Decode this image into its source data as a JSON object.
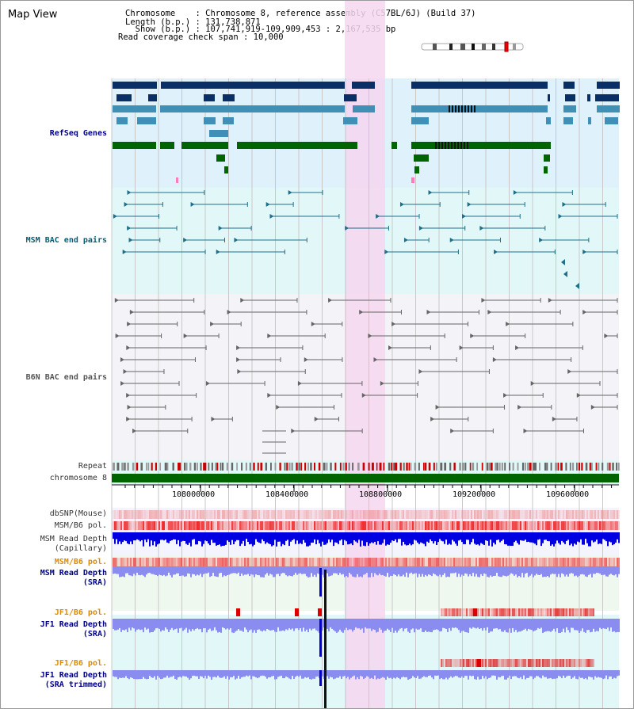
{
  "header": {
    "title": "Map View",
    "chromosome_line": "Chromosome    : Chromosome 8, reference assembly (C57BL/6J) (Build 37)",
    "length_line": "Length (b.p.) : 131,738,871",
    "show_line": "  Show (b.p.) : 107,741,919-109,909,453 : 2,167,535 bp",
    "coverage_line": "Read coverage check span : 10,000"
  },
  "tracks": {
    "refseq": "RefSeq Genes",
    "msm_bac": "MSM BAC end pairs",
    "b6n_bac": "B6N BAC end pairs",
    "repeat": "Repeat",
    "chromosome": "chromosome 8",
    "dbsnp": "dbSNP(Mouse)",
    "msm_b6_pol": "MSM/B6 pol.",
    "msm_depth_cap_1": "MSM Read Depth",
    "msm_depth_cap_2": "(Capillary)",
    "msm_b6_pol_2": "MSM/B6 pol.",
    "msm_depth_sra_1": "MSM Read Depth",
    "msm_depth_sra_2": "(SRA)",
    "jf1_b6_pol": "JF1/B6 pol.",
    "jf1_depth_sra_1": "JF1 Read Depth",
    "jf1_depth_sra_2": "(SRA)",
    "jf1_b6_pol_2": "JF1/B6 pol.",
    "jf1_depth_trim_1": "JF1 Read Depth",
    "jf1_depth_trim_2": "(SRA trimmed)"
  },
  "axis": {
    "ticks": [
      "108000000",
      "108400000",
      "108800000",
      "109200000",
      "109600000"
    ]
  },
  "colors": {
    "refseq_dark": "#0a2f66",
    "refseq_mid": "#3f8fb6",
    "refseq_green": "#006400",
    "refseq_bg": "#dff1fa",
    "msm_bg": "#e2f8f8",
    "b6n_bg": "#f3f3f8",
    "highlight": "#f6d7f0",
    "chromosome_green": "#006400",
    "depth_blue": "#0000e0",
    "depth_sra": "#8a8cf0"
  }
}
